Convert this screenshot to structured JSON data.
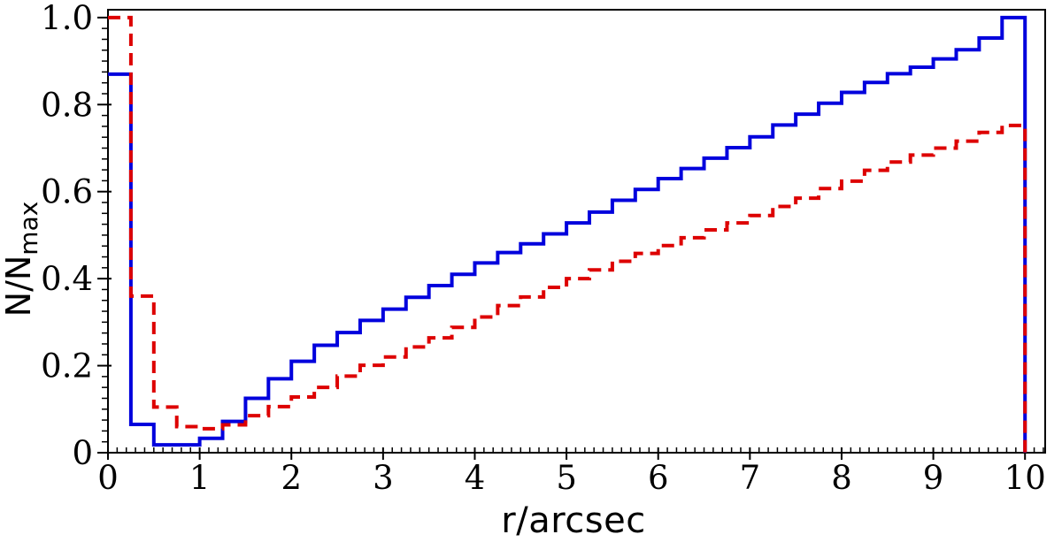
{
  "page": {
    "background": "#ffffff"
  },
  "chart_data": {
    "type": "step-histogram",
    "title": "",
    "xlabel": "r/arcsec",
    "ylabel_main": "N/N",
    "ylabel_sub": "max",
    "xlim": [
      0,
      10.22
    ],
    "ylim": [
      0,
      1.018
    ],
    "bin_start": 0,
    "bin_width": 0.25,
    "n_bins": 40,
    "grid": false,
    "legend": null,
    "frame_color": "#000000",
    "x_major_ticks": [
      0,
      1,
      2,
      3,
      4,
      5,
      6,
      7,
      8,
      9,
      10
    ],
    "x_major_labels": [
      "0",
      "1",
      "2",
      "3",
      "4",
      "5",
      "6",
      "7",
      "8",
      "9",
      "10"
    ],
    "x_minor_step": 0.1,
    "x_minor_max": 10.2,
    "y_major_ticks": [
      0,
      0.2,
      0.4,
      0.6,
      0.8,
      1.0
    ],
    "y_major_labels": [
      "0",
      "0.2",
      "0.4",
      "0.6",
      "0.8",
      "1.0"
    ],
    "y_minor_step": 0.025,
    "y_minor_max": 1.0,
    "series": [
      {
        "name": "blue-solid-histogram",
        "color": "#0000dd",
        "style": "solid",
        "line_width": 4,
        "values": [
          0.87,
          0.065,
          0.018,
          0.018,
          0.033,
          0.072,
          0.125,
          0.17,
          0.21,
          0.247,
          0.276,
          0.304,
          0.33,
          0.357,
          0.384,
          0.41,
          0.436,
          0.46,
          0.48,
          0.503,
          0.528,
          0.553,
          0.58,
          0.605,
          0.63,
          0.653,
          0.677,
          0.701,
          0.726,
          0.753,
          0.778,
          0.803,
          0.828,
          0.851,
          0.871,
          0.886,
          0.905,
          0.926,
          0.953,
          1.0
        ]
      },
      {
        "name": "red-dashed-histogram",
        "color": "#dd0000",
        "style": "dashed",
        "line_width": 4,
        "values": [
          1.0,
          0.36,
          0.105,
          0.06,
          0.055,
          0.064,
          0.085,
          0.106,
          0.128,
          0.15,
          0.176,
          0.201,
          0.22,
          0.243,
          0.264,
          0.288,
          0.312,
          0.338,
          0.358,
          0.38,
          0.4,
          0.42,
          0.44,
          0.458,
          0.476,
          0.494,
          0.512,
          0.528,
          0.545,
          0.566,
          0.585,
          0.607,
          0.624,
          0.649,
          0.668,
          0.684,
          0.7,
          0.716,
          0.736,
          0.752
        ]
      }
    ]
  }
}
